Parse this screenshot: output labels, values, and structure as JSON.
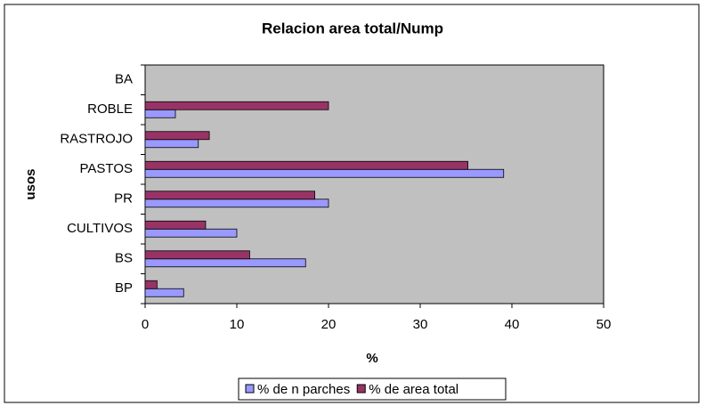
{
  "chart_data": {
    "type": "bar",
    "orientation": "horizontal",
    "title": "Relacion area total/Nump",
    "x_label": "%",
    "y_label": "usos",
    "categories": [
      "BP",
      "BS",
      "CULTIVOS",
      "PR",
      "PASTOS",
      "RASTROJO",
      "ROBLE",
      "BA"
    ],
    "series": [
      {
        "name": "% de n parches",
        "color": "#9999ff",
        "values": [
          4.2,
          17.5,
          10,
          20,
          39.1,
          5.8,
          3.3,
          0
        ]
      },
      {
        "name": "% de area total",
        "color": "#993366",
        "values": [
          1.3,
          11.4,
          6.6,
          18.5,
          35.2,
          7,
          20,
          0
        ]
      }
    ],
    "xlim": [
      0,
      50
    ],
    "xticks": [
      0,
      10,
      20,
      30,
      40,
      50
    ],
    "grid": false,
    "plot_background": "#c0c0c0",
    "legend": "bottom"
  }
}
